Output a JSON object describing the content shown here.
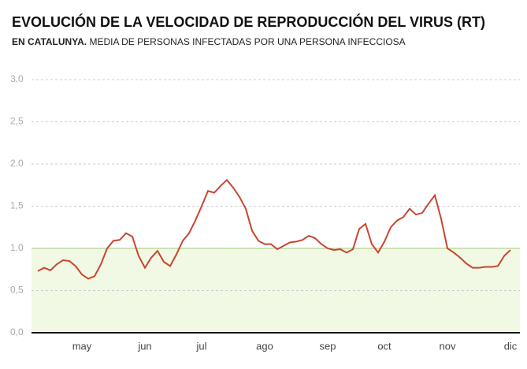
{
  "chart_data": {
    "type": "line",
    "title": "EVOLUCIÓN DE LA VELOCIDAD DE REPRODUCCIÓN DEL VIRUS (RT)",
    "subtitle_lead": "EN CATALUNYA.",
    "subtitle": "MEDIA DE PERSONAS INFECTADAS POR UNA PERSONA INFECCIOSA",
    "categories": [
      null,
      null,
      null,
      null,
      null,
      null,
      null,
      "may",
      null,
      null,
      null,
      null,
      null,
      null,
      null,
      null,
      null,
      "jun",
      null,
      null,
      null,
      null,
      null,
      null,
      null,
      null,
      "jul",
      null,
      null,
      null,
      null,
      null,
      null,
      null,
      null,
      null,
      "ago",
      null,
      null,
      null,
      null,
      null,
      null,
      null,
      null,
      null,
      "sep",
      null,
      null,
      null,
      null,
      null,
      null,
      null,
      null,
      "oct",
      null,
      null,
      null,
      null,
      null,
      null,
      null,
      null,
      null,
      "nov",
      null,
      null,
      null,
      null,
      null,
      null,
      null,
      null,
      null,
      "dic"
    ],
    "series": [
      {
        "name": "Rt",
        "color": "#c8452f",
        "values": [
          0.73,
          0.77,
          0.74,
          0.81,
          0.86,
          0.85,
          0.79,
          0.69,
          0.64,
          0.67,
          0.81,
          1.0,
          1.09,
          1.1,
          1.18,
          1.14,
          0.91,
          0.77,
          0.89,
          0.97,
          0.84,
          0.79,
          0.93,
          1.09,
          1.18,
          1.33,
          1.5,
          1.68,
          1.66,
          1.74,
          1.81,
          1.72,
          1.61,
          1.47,
          1.21,
          1.09,
          1.05,
          1.05,
          0.99,
          1.03,
          1.07,
          1.08,
          1.1,
          1.15,
          1.12,
          1.05,
          1.0,
          0.98,
          0.99,
          0.95,
          0.99,
          1.23,
          1.29,
          1.05,
          0.95,
          1.08,
          1.25,
          1.33,
          1.37,
          1.47,
          1.4,
          1.42,
          1.53,
          1.63,
          1.35,
          1.0,
          0.95,
          0.89,
          0.82,
          0.77,
          0.77,
          0.78,
          0.78,
          0.79,
          0.91,
          0.98
        ]
      }
    ],
    "threshold": 1,
    "threshold_color": "#f1f8e4",
    "ylim": [
      0,
      3
    ],
    "yticks": [
      {
        "value": 0,
        "label": "0,0"
      },
      {
        "value": 0.5,
        "label": "0,5"
      },
      {
        "value": 1,
        "label": "1.0"
      },
      {
        "value": 1.5,
        "label": "1,5"
      },
      {
        "value": 2,
        "label": "2.0"
      },
      {
        "value": 2.5,
        "label": "2,5"
      },
      {
        "value": 3,
        "label": "3,0"
      }
    ],
    "grid": true
  }
}
